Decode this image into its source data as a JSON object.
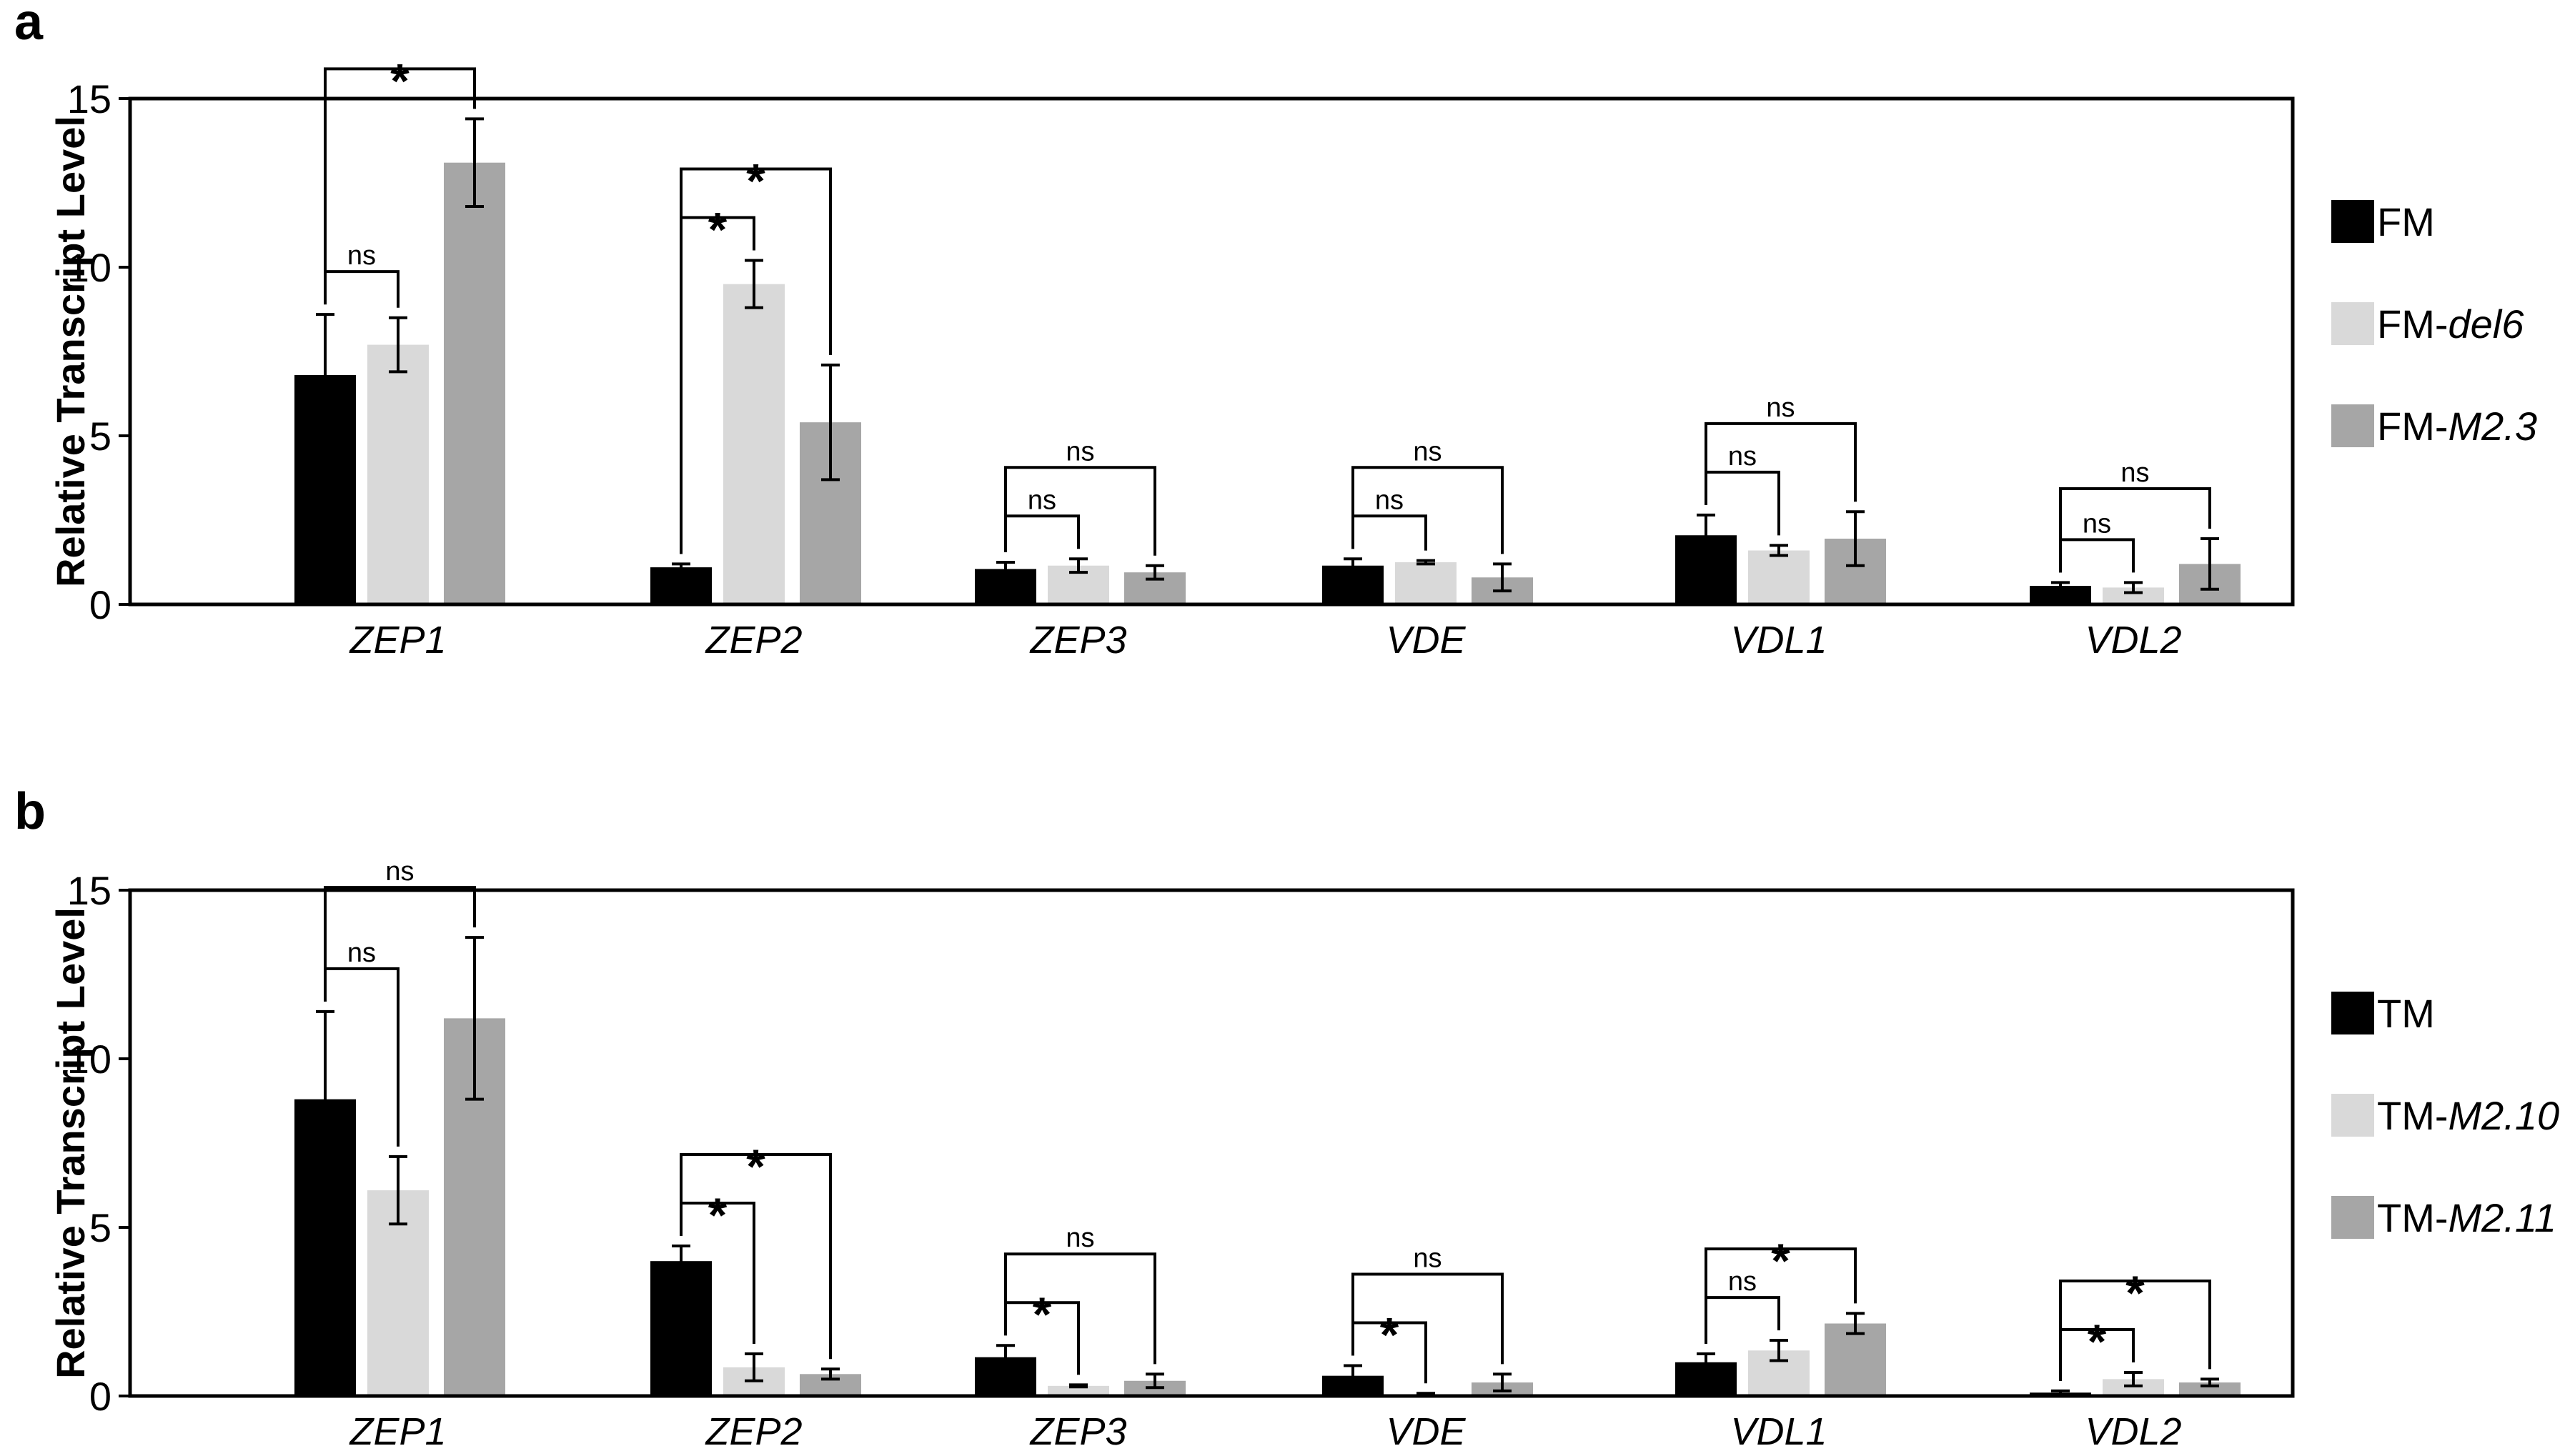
{
  "chart_data": [
    {
      "panel": "a",
      "type": "bar",
      "ylabel": "Relative Transcript Level",
      "ylim": [
        0,
        15
      ],
      "yticks": [
        0,
        5,
        10,
        15
      ],
      "categories": [
        "ZEP1",
        "ZEP2",
        "ZEP3",
        "VDE",
        "VDL1",
        "VDL2"
      ],
      "series": [
        {
          "name": "FM",
          "suffix": "",
          "color": "#000000",
          "values": [
            6.8,
            1.1,
            1.05,
            1.15,
            2.05,
            0.55
          ],
          "errors": [
            1.8,
            0.1,
            0.2,
            0.2,
            0.6,
            0.1
          ]
        },
        {
          "name": "FM-",
          "suffix": "del6",
          "color": "#d9d9d9",
          "values": [
            7.7,
            9.5,
            1.15,
            1.25,
            1.6,
            0.5
          ],
          "errors": [
            0.8,
            0.7,
            0.2,
            0.05,
            0.15,
            0.15
          ]
        },
        {
          "name": "FM-",
          "suffix": "M2.3",
          "color": "#a6a6a6",
          "values": [
            13.1,
            5.4,
            0.95,
            0.8,
            1.95,
            1.2
          ],
          "errors": [
            1.3,
            1.7,
            0.2,
            0.4,
            0.8,
            0.75
          ]
        }
      ],
      "comparisons": [
        {
          "category": 0,
          "to": 1,
          "label": "ns"
        },
        {
          "category": 0,
          "to": 2,
          "label": "*"
        },
        {
          "category": 1,
          "to": 1,
          "label": "*"
        },
        {
          "category": 1,
          "to": 2,
          "label": "*"
        },
        {
          "category": 2,
          "to": 1,
          "label": "ns"
        },
        {
          "category": 2,
          "to": 2,
          "label": "ns"
        },
        {
          "category": 3,
          "to": 1,
          "label": "ns"
        },
        {
          "category": 3,
          "to": 2,
          "label": "ns"
        },
        {
          "category": 4,
          "to": 1,
          "label": "ns"
        },
        {
          "category": 4,
          "to": 2,
          "label": "ns"
        },
        {
          "category": 5,
          "to": 1,
          "label": "ns"
        },
        {
          "category": 5,
          "to": 2,
          "label": "ns"
        }
      ]
    },
    {
      "panel": "b",
      "type": "bar",
      "ylabel": "Relative Transcript Level",
      "ylim": [
        0,
        15
      ],
      "yticks": [
        0,
        5,
        10,
        15
      ],
      "categories": [
        "ZEP1",
        "ZEP2",
        "ZEP3",
        "VDE",
        "VDL1",
        "VDL2"
      ],
      "series": [
        {
          "name": "TM",
          "suffix": "",
          "color": "#000000",
          "values": [
            8.8,
            4.0,
            1.15,
            0.6,
            1.0,
            0.1
          ],
          "errors": [
            2.6,
            0.45,
            0.35,
            0.3,
            0.25,
            0.05
          ]
        },
        {
          "name": "TM-",
          "suffix": "M2.10",
          "color": "#d9d9d9",
          "values": [
            6.1,
            0.85,
            0.3,
            0.05,
            1.35,
            0.5
          ],
          "errors": [
            1.0,
            0.4,
            0.03,
            0.03,
            0.3,
            0.2
          ]
        },
        {
          "name": "TM-",
          "suffix": "M2.11",
          "color": "#a6a6a6",
          "values": [
            11.2,
            0.65,
            0.45,
            0.4,
            2.15,
            0.4
          ],
          "errors": [
            2.4,
            0.15,
            0.2,
            0.25,
            0.3,
            0.1
          ]
        }
      ],
      "comparisons": [
        {
          "category": 0,
          "to": 1,
          "label": "ns"
        },
        {
          "category": 0,
          "to": 2,
          "label": "ns"
        },
        {
          "category": 1,
          "to": 1,
          "label": "*"
        },
        {
          "category": 1,
          "to": 2,
          "label": "*"
        },
        {
          "category": 2,
          "to": 1,
          "label": "*"
        },
        {
          "category": 2,
          "to": 2,
          "label": "ns"
        },
        {
          "category": 3,
          "to": 1,
          "label": "*"
        },
        {
          "category": 3,
          "to": 2,
          "label": "ns"
        },
        {
          "category": 4,
          "to": 1,
          "label": "ns"
        },
        {
          "category": 4,
          "to": 2,
          "label": "*"
        },
        {
          "category": 5,
          "to": 1,
          "label": "*"
        },
        {
          "category": 5,
          "to": 2,
          "label": "*"
        }
      ]
    }
  ]
}
